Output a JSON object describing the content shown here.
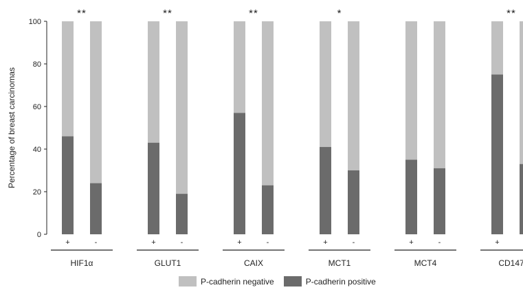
{
  "chart_data": {
    "type": "bar",
    "stacked": true,
    "ylabel": "Percentage of breast carcinomas",
    "ylim": [
      0,
      100
    ],
    "yticks": [
      "0",
      "20",
      "40",
      "60",
      "80",
      "100"
    ],
    "groups": [
      {
        "name": "HIF1α",
        "significance": "**",
        "bars": [
          {
            "label": "+",
            "positive": 46,
            "negative": 54
          },
          {
            "label": "-",
            "positive": 24,
            "negative": 76
          }
        ]
      },
      {
        "name": "GLUT1",
        "significance": "**",
        "bars": [
          {
            "label": "+",
            "positive": 43,
            "negative": 57
          },
          {
            "label": "-",
            "positive": 19,
            "negative": 81
          }
        ]
      },
      {
        "name": "CAIX",
        "significance": "**",
        "bars": [
          {
            "label": "+",
            "positive": 57,
            "negative": 43
          },
          {
            "label": "-",
            "positive": 23,
            "negative": 77
          }
        ]
      },
      {
        "name": "MCT1",
        "significance": "*",
        "bars": [
          {
            "label": "+",
            "positive": 41,
            "negative": 59
          },
          {
            "label": "-",
            "positive": 30,
            "negative": 70
          }
        ]
      },
      {
        "name": "MCT4",
        "significance": "",
        "bars": [
          {
            "label": "+",
            "positive": 35,
            "negative": 65
          },
          {
            "label": "-",
            "positive": 31,
            "negative": 69
          }
        ]
      },
      {
        "name": "CD147",
        "significance": "**",
        "bars": [
          {
            "label": "+",
            "positive": 75,
            "negative": 25
          },
          {
            "label": "-",
            "positive": 33,
            "negative": 67
          }
        ]
      }
    ],
    "series": [
      {
        "name": "P-cadherin negative",
        "color": "#c0c0c0"
      },
      {
        "name": "P-cadherin positive",
        "color": "#6b6b6b"
      }
    ],
    "legend_position": "bottom"
  }
}
